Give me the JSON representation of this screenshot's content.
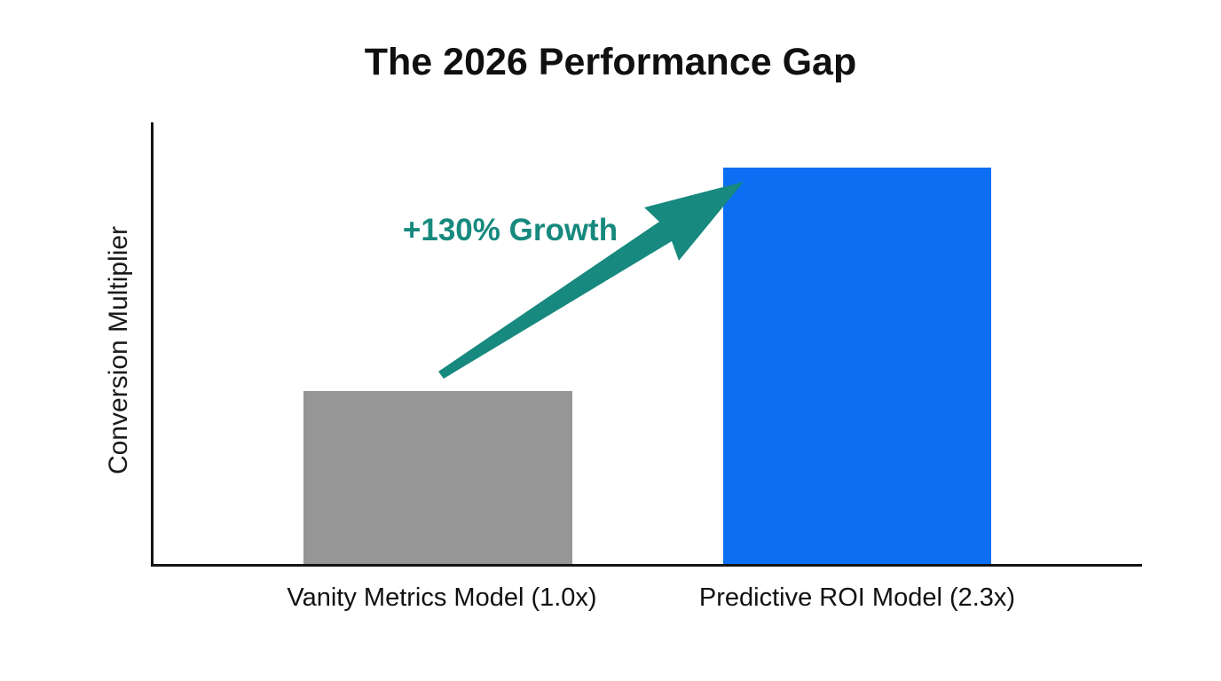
{
  "title": "The 2026 Performance Gap",
  "chart_data": {
    "type": "bar",
    "title": "The 2026 Performance Gap",
    "categories": [
      "Vanity Metrics Model (1.0x)",
      "Predictive ROI Model (2.3x)"
    ],
    "values": [
      1.0,
      2.3
    ],
    "xlabel": "",
    "ylabel": "Conversion Multiplier",
    "ylim": [
      0,
      2.56
    ],
    "grid": false,
    "legend": false,
    "bar_colors": [
      "#969696",
      "#0c6ef2"
    ],
    "axis_color": "#141414",
    "annotation": {
      "text": "+130% Growth",
      "color": "#17897e",
      "shape": "arrow-up-right"
    }
  }
}
